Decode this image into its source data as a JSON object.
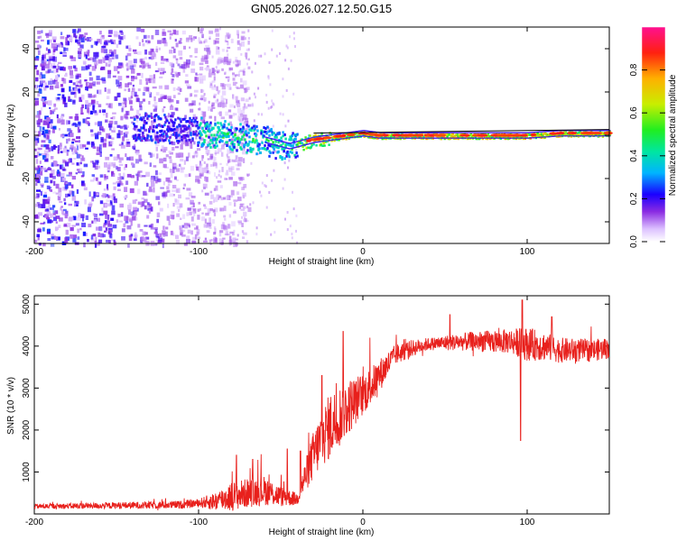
{
  "title": "GN05.2026.027.12.50.G15",
  "chart_data": [
    {
      "type": "heatmap",
      "name": "spectrogram",
      "xlabel": "Height of straight line (km)",
      "ylabel": "Frequency (Hz)",
      "xlim": [
        -200,
        150
      ],
      "ylim": [
        -50,
        50
      ],
      "xticks": [
        -200,
        -100,
        0,
        100
      ],
      "yticks": [
        -40,
        -20,
        0,
        20,
        40
      ],
      "colorbar": {
        "label": "Normalized spectral amplitude",
        "range": [
          0,
          1
        ],
        "ticks": [
          "0.0",
          "0.2",
          "0.4",
          "0.6",
          "0.8"
        ],
        "tick_values": [
          0.0,
          0.2,
          0.4,
          0.6,
          0.8
        ]
      },
      "reference_line_freq_hz": 1,
      "ridge": {
        "x": [
          -140,
          -130,
          -120,
          -110,
          -100,
          -90,
          -80,
          -70,
          -60,
          -50,
          -45,
          -40,
          -35,
          -30,
          -20,
          -10,
          0,
          10,
          20,
          40,
          60,
          80,
          100,
          120,
          140,
          150
        ],
        "y": [
          4,
          4,
          3,
          3,
          2,
          1,
          0,
          -1,
          -2,
          -4,
          -5,
          -4,
          -3,
          -2,
          -1,
          0,
          1,
          0,
          0,
          0,
          0,
          0,
          0,
          1,
          1,
          1
        ]
      },
      "noise_region_x": [
        -200,
        -90
      ]
    },
    {
      "type": "line",
      "name": "snr",
      "xlabel": "Height of straight line (km)",
      "ylabel": "SNR (10 * v/v)",
      "xlim": [
        -200,
        150
      ],
      "ylim": [
        0,
        5200
      ],
      "xticks": [
        -200,
        -100,
        0,
        100
      ],
      "yticks": [
        1000,
        2000,
        3000,
        4000,
        5000
      ],
      "color": "#e8201c",
      "trend": {
        "x": [
          -200,
          -150,
          -110,
          -90,
          -80,
          -70,
          -60,
          -50,
          -40,
          -35,
          -30,
          -25,
          -20,
          -15,
          -10,
          -5,
          0,
          5,
          10,
          15,
          20,
          30,
          40,
          50,
          60,
          70,
          80,
          90,
          100,
          110,
          120,
          130,
          140,
          150
        ],
        "y": [
          180,
          200,
          220,
          300,
          420,
          500,
          560,
          420,
          350,
          900,
          1400,
          1800,
          2100,
          2300,
          2500,
          2700,
          2850,
          3050,
          3300,
          3550,
          3800,
          3950,
          4050,
          4080,
          4100,
          4120,
          4100,
          4120,
          4050,
          4000,
          3900,
          3900,
          3900,
          3950
        ]
      },
      "noise": {
        "x": [
          -200,
          -100,
          -80,
          -60,
          -40,
          -30,
          -20,
          -10,
          0,
          10,
          20,
          40,
          90,
          100,
          120,
          150
        ],
        "amp": [
          60,
          100,
          350,
          350,
          150,
          600,
          800,
          700,
          500,
          400,
          250,
          150,
          300,
          400,
          300,
          250
        ]
      },
      "spikes": [
        {
          "x": -77,
          "y": 1400
        },
        {
          "x": -67,
          "y": 1300
        },
        {
          "x": -46,
          "y": 1550
        },
        {
          "x": -38,
          "y": 1500
        },
        {
          "x": -25,
          "y": 3300
        },
        {
          "x": -12,
          "y": 4350
        },
        {
          "x": -4,
          "y": 3150
        },
        {
          "x": 27,
          "y": 3900
        },
        {
          "x": 53,
          "y": 4750
        },
        {
          "x": 96,
          "y": 1750
        },
        {
          "x": 97,
          "y": 5100
        },
        {
          "x": 115,
          "y": 4700
        }
      ]
    }
  ]
}
